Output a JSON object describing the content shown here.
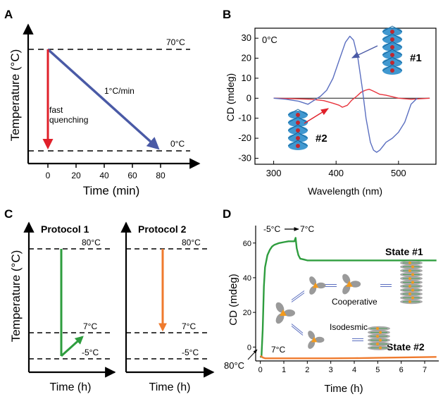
{
  "colors": {
    "axis": "#000000",
    "blue": "#4a5aa6",
    "red": "#e0202a",
    "green": "#2e9d3e",
    "orange": "#ef7a2d",
    "thin_blue": "#5b6fc0",
    "thin_red": "#e8333c",
    "baseline": "#333333",
    "helix_blue": "#1f86c8",
    "helix_red": "#c0282f",
    "molecule_grey": "#9a9a9a",
    "molecule_orange": "#f39a1c"
  },
  "panels": {
    "A": {
      "letter": "A",
      "ylabel": "Temperature (°C)",
      "xlabel": "Time (min)",
      "line_70": "70°C",
      "line_0": "0°C",
      "rate": "1°C/min",
      "fast_1": "fast",
      "fast_2": "quenching"
    },
    "B": {
      "letter": "B",
      "ylabel": "CD (mdeg)",
      "xlabel": "Wavelength (nm)",
      "temp": "0°C",
      "label_1": "#1",
      "label_2": "#2"
    },
    "C": {
      "letter": "C",
      "ylabel": "Temperature (°C)",
      "p1_title": "Protocol 1",
      "p2_title": "Protocol 2",
      "xlabel": "Time (h)",
      "t80": "80°C",
      "t7": "7°C",
      "tm5": "-5°C"
    },
    "D": {
      "letter": "D",
      "ylabel": "CD (mdeg)",
      "xlabel": "Time (h)",
      "temp_jump_a": "-5°C",
      "temp_jump_b": "7°C",
      "state1": "State #1",
      "state2": "State #2",
      "cooperative": "Cooperative",
      "isodesmic": "Isodesmic",
      "t80": "80°C",
      "t7": "7°C"
    }
  },
  "chart_data": [
    {
      "panel": "A",
      "type": "line",
      "xlabel": "Time (min)",
      "ylabel": "Temperature (°C)",
      "xlim": [
        -10,
        90
      ],
      "ylim": [
        -5,
        85
      ],
      "x_ticks": [
        0,
        20,
        40,
        60,
        80
      ],
      "y_ticks": [],
      "series": [
        {
          "color": "blue",
          "x": [
            0,
            70
          ],
          "y": [
            70,
            0
          ]
        },
        {
          "color": "red",
          "x": [
            0,
            0
          ],
          "y": [
            70,
            0
          ]
        }
      ],
      "reference_lines": [
        {
          "y": 70,
          "label": "70°C"
        },
        {
          "y": 0,
          "label": "0°C"
        }
      ],
      "annotations": [
        "1°C/min",
        "fast quenching"
      ]
    },
    {
      "panel": "B",
      "type": "line",
      "xlabel": "Wavelength (nm)",
      "ylabel": "CD (mdeg)",
      "xlim": [
        270,
        560
      ],
      "ylim": [
        -33,
        35
      ],
      "x_ticks": [
        300,
        400,
        500
      ],
      "y_ticks": [
        30,
        20,
        10,
        0,
        -10,
        -20,
        -30
      ],
      "series": [
        {
          "color": "blue",
          "x": [
            300,
            320,
            340,
            355,
            365,
            375,
            385,
            395,
            405,
            415,
            422,
            428,
            435,
            442,
            448,
            455,
            460,
            465,
            470,
            475,
            480,
            490,
            500,
            510,
            520,
            530
          ],
          "y": [
            0,
            -0.5,
            -1.5,
            -3,
            -1,
            1,
            4,
            10,
            19,
            28,
            31,
            29,
            20,
            5,
            -10,
            -22,
            -26,
            -27,
            -26,
            -24,
            -22,
            -20,
            -17,
            -12,
            -3,
            0
          ]
        },
        {
          "color": "red",
          "x": [
            300,
            330,
            360,
            380,
            395,
            405,
            410,
            418,
            425,
            433,
            440,
            447,
            453,
            460,
            470,
            480,
            500,
            520,
            550
          ],
          "y": [
            0,
            -0.2,
            -0.5,
            -1.2,
            -2.5,
            -3.5,
            -4.5,
            -3.5,
            -1,
            1,
            3,
            4,
            4.5,
            3.5,
            2,
            1.5,
            0,
            -0.5,
            0
          ]
        },
        {
          "color": "black",
          "x": [
            300,
            550
          ],
          "y": [
            0,
            0
          ]
        }
      ],
      "annotations": [
        "0°C",
        "#1",
        "#2"
      ]
    },
    {
      "panel": "C",
      "type": "line",
      "xlabel": "Time (h)",
      "ylabel": "Temperature (°C)",
      "ylim": [
        -10,
        95
      ],
      "series": [
        {
          "name": "Protocol 1",
          "color": "green",
          "points_temp": [
            80,
            -5,
            7
          ]
        },
        {
          "name": "Protocol 2",
          "color": "orange",
          "points_temp": [
            80,
            7
          ]
        }
      ],
      "reference_lines": [
        {
          "y": 80,
          "label": "80°C"
        },
        {
          "y": 7,
          "label": "7°C"
        },
        {
          "y": -5,
          "label": "-5°C"
        }
      ]
    },
    {
      "panel": "D",
      "type": "line",
      "xlabel": "Time (h)",
      "ylabel": "CD (mdeg)",
      "xlim": [
        -0.2,
        7.6
      ],
      "ylim": [
        -8,
        66
      ],
      "x_ticks": [
        0,
        1,
        2,
        3,
        4,
        5,
        6,
        7
      ],
      "y_ticks": [
        0,
        20,
        40,
        60
      ],
      "series": [
        {
          "name": "State #1",
          "color": "green",
          "x": [
            0,
            0.05,
            0.1,
            0.15,
            0.2,
            0.3,
            0.4,
            0.5,
            0.6,
            0.8,
            1.0,
            1.2,
            1.45,
            1.5,
            1.55,
            1.62,
            1.7,
            1.85,
            2.0,
            3.0,
            4.0,
            5.0,
            6.0,
            7.0,
            7.5
          ],
          "y": [
            -6,
            -5,
            10,
            35,
            46,
            53,
            56,
            58,
            59,
            60,
            60.5,
            61,
            61,
            63,
            57,
            53,
            51,
            50.5,
            50,
            50,
            50,
            50,
            50,
            50,
            50
          ]
        },
        {
          "name": "State #2",
          "color": "orange",
          "x": [
            0,
            0.1,
            0.2,
            0.4,
            1,
            2,
            3,
            4,
            5,
            6,
            7,
            7.5
          ],
          "y": [
            -5,
            -6,
            -6.5,
            -6.5,
            -6.5,
            -6.5,
            -6.5,
            -6.4,
            -6.2,
            -6,
            -5.8,
            -5.7
          ]
        }
      ],
      "annotations": [
        "-5°C",
        "7°C",
        "80°C",
        "7°C",
        "Cooperative",
        "Isodesmic"
      ]
    }
  ]
}
